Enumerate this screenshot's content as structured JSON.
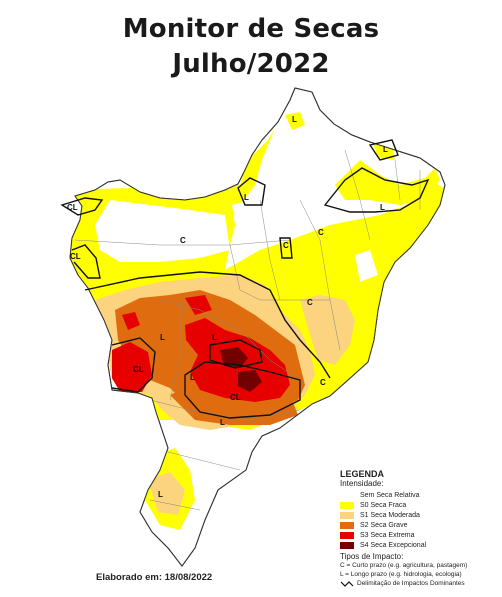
{
  "title": {
    "line1": "Monitor de Secas",
    "line2": "Julho/2022"
  },
  "map": {
    "region": "Brasil - regiões Nordeste, Centro-Oeste, Sudeste e Sul",
    "impact_labels": [
      "CL",
      "CL",
      "L",
      "C",
      "C",
      "L",
      "L",
      "C",
      "L",
      "C",
      "L",
      "L",
      "CL",
      "CL",
      "L",
      "L",
      "C",
      "L"
    ]
  },
  "legend": {
    "title": "LEGENDA",
    "subtitle": "Intensidade:",
    "items": [
      {
        "label": "Sem Seca Relativa",
        "color": "#ffffff"
      },
      {
        "label": "S0 Seca Fraca",
        "color": "#ffff00"
      },
      {
        "label": "S1 Seca Moderada",
        "color": "#fcd37f"
      },
      {
        "label": "S2 Seca Grave",
        "color": "#e06c10"
      },
      {
        "label": "S3 Seca Extrema",
        "color": "#e60000"
      },
      {
        "label": "S4 Seca Excepcional",
        "color": "#730000"
      }
    ],
    "impact_title": "Tipos de Impacto:",
    "impact_short": "C = Curto prazo (e.g. agricultura, pastagem)",
    "impact_long": "L = Longo prazo (e.g. hidrologia, ecologia)",
    "delimitation": "Delimitação de Impactos Dominantes"
  },
  "footer": {
    "elaborado": "Elaborado em: 18/08/2022"
  }
}
